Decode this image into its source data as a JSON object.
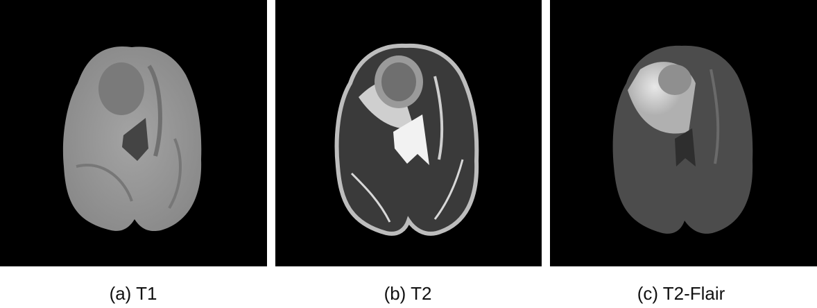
{
  "panels": [
    {
      "caption": "(a) T1"
    },
    {
      "caption": "(b) T2"
    },
    {
      "caption": "(c) T2-Flair"
    }
  ],
  "colors": {
    "background": "#000000",
    "caption": "#111111"
  }
}
